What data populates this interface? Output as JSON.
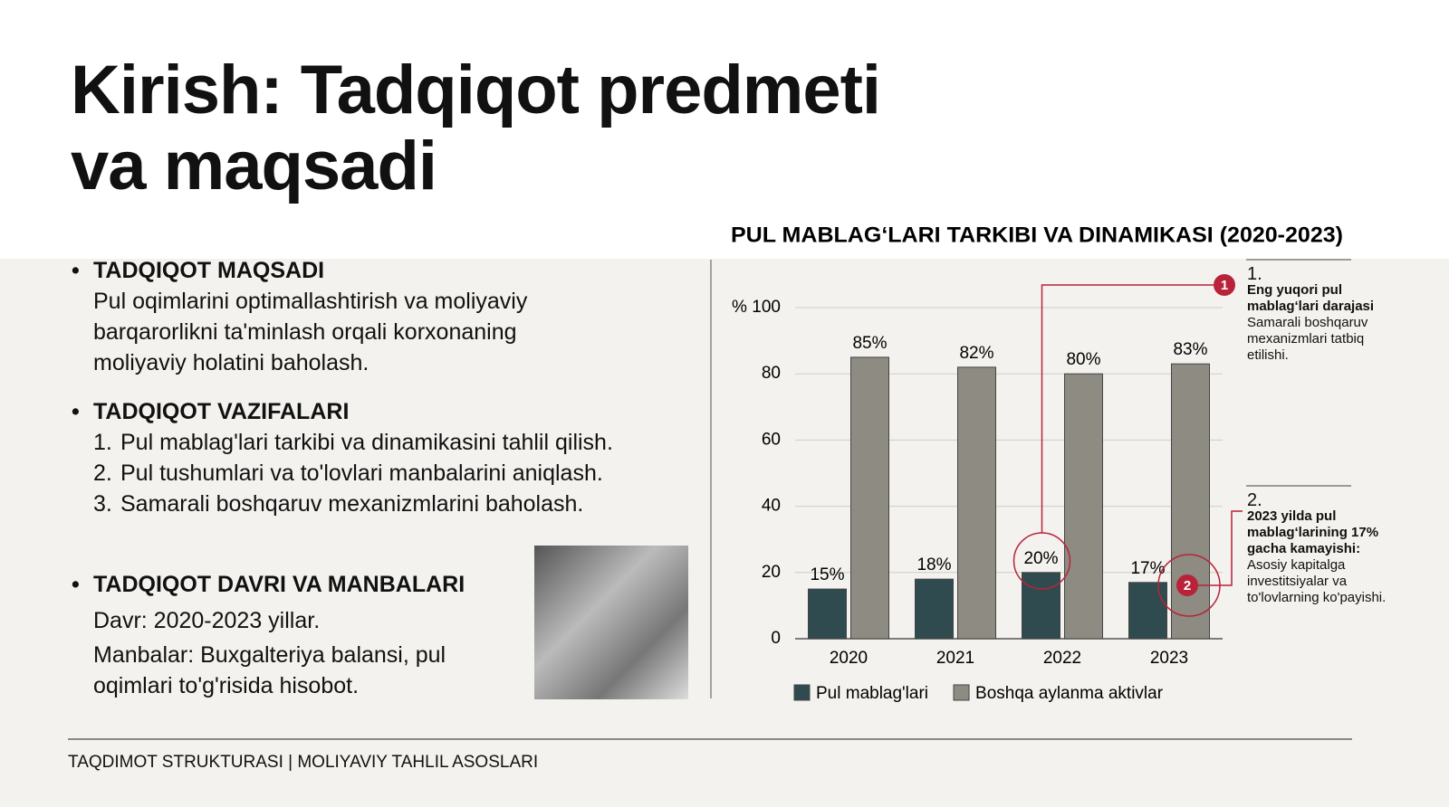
{
  "title": "Kirish: Tadqiqot predmeti va maqsadi",
  "sections": [
    {
      "heading": "TADQIQOT MAQSADI",
      "text": "Pul oqimlarini optimallashtirish va moliyaviy barqarorlikni ta'minlash orqali korxonaning moliyaviy holatini baholash."
    },
    {
      "heading": "TADQIQOT VAZIFALARI",
      "items": [
        {
          "number": "1.",
          "text": "Pul mablag'lari tarkibi va dinamikasini tahlil qilish."
        },
        {
          "number": "2.",
          "text": "Pul tushumlari va to'lovlari manbalarini aniqlash."
        },
        {
          "number": "3.",
          "text": "Samarali boshqaruv mexanizmlarini baholash."
        }
      ]
    },
    {
      "heading": "TADQIQOT DAVRI VA MANBALARI",
      "lines": [
        "Davr: 2020-2023 yillar.",
        "Manbalar: Buxgalteriya balansi, pul oqimlari to'g'risida hisobot."
      ]
    }
  ],
  "chart_data": {
    "type": "bar",
    "title": "PUL MABLAG‘LARI TARKIBI VA DINAMIKASI (2020-2023)",
    "y_label": "%",
    "categories": [
      "2020",
      "2021",
      "2022",
      "2023"
    ],
    "series": [
      {
        "name": "Pul mablag'lari",
        "color": "#2f4b4f",
        "values": [
          15,
          18,
          20,
          17
        ],
        "value_labels": [
          "15%",
          "18%",
          "20%",
          "17%"
        ]
      },
      {
        "name": "Boshqa aylanma aktivlar",
        "color": "#8e8b82",
        "values": [
          85,
          82,
          80,
          83
        ],
        "value_labels": [
          "85%",
          "82%",
          "80%",
          "83%"
        ]
      }
    ],
    "ylim": [
      0,
      100
    ],
    "yticks": [
      0,
      20,
      40,
      60,
      80,
      100
    ],
    "grid": true,
    "annotations": [
      {
        "marker": "1",
        "number": "1.",
        "title": "Eng yuqori pul mablag‘lari darajasi",
        "text": "Samarali boshqaruv mexanizmlari tatbiq etilishi."
      },
      {
        "marker": "2",
        "number": "2.",
        "title": "2023 yilda pul mablag‘larining 17% gacha kamayishi:",
        "text": "Asosiy kapitalga investitsiyalar va to'lovlarning ko'payishi."
      }
    ]
  },
  "footer": "TAQDIMOT STRUKTURASI | MOLIYAVIY TAHLIL ASOSLARI"
}
